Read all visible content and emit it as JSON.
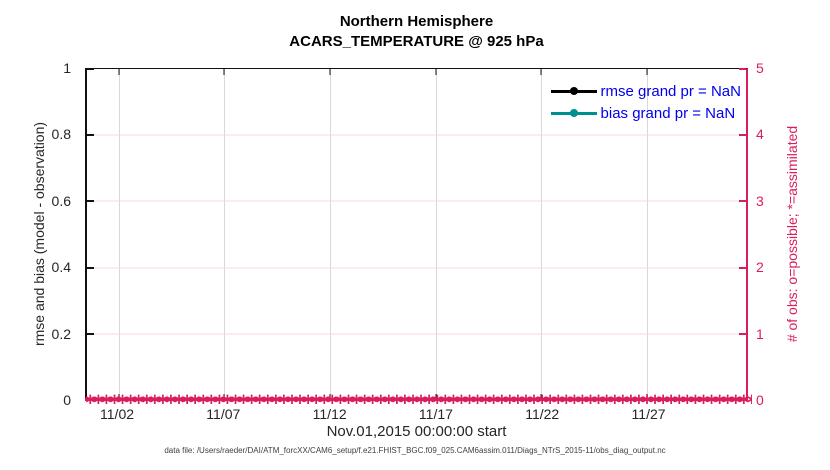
{
  "chart_data": {
    "type": "line",
    "title": "Northern Hemisphere",
    "subtitle": "ACARS_TEMPERATURE @ 925 hPa",
    "xlabel": "Nov.01,2015 00:00:00 start",
    "footer_note": "data file: /Users/raeder/DAI/ATM_forcXX/CAM6_setup/f.e21.FHIST_BGC.f09_025.CAM6assim.011/Diags_NTrS_2015-11/obs_diag_output.nc",
    "grid": {
      "vertical_color": "#d9d9d9",
      "horizontal_color": "#f8d7e3"
    },
    "x_axis": {
      "ticks": [
        {
          "label": "11/02",
          "pos_pct": 4.83
        },
        {
          "label": "11/07",
          "pos_pct": 20.86
        },
        {
          "label": "11/12",
          "pos_pct": 36.9
        },
        {
          "label": "11/17",
          "pos_pct": 52.93
        },
        {
          "label": "11/22",
          "pos_pct": 68.96
        },
        {
          "label": "11/27",
          "pos_pct": 85.0
        }
      ]
    },
    "left_axis": {
      "label": "rmse and bias (model - observation)",
      "lim": [
        0,
        1
      ],
      "color": "#111111",
      "ticks": [
        {
          "label": "0",
          "value": 0
        },
        {
          "label": "0.2",
          "value": 0.2
        },
        {
          "label": "0.4",
          "value": 0.4
        },
        {
          "label": "0.6",
          "value": 0.6
        },
        {
          "label": "0.8",
          "value": 0.8
        },
        {
          "label": "1",
          "value": 1
        }
      ]
    },
    "right_axis": {
      "label": "# of obs: o=possible; *=assimilated",
      "lim": [
        0,
        5
      ],
      "color": "#DA1D5E",
      "ticks": [
        {
          "label": "0",
          "value": 0
        },
        {
          "label": "1",
          "value": 1
        },
        {
          "label": "2",
          "value": 2
        },
        {
          "label": "3",
          "value": 3
        },
        {
          "label": "4",
          "value": 4
        },
        {
          "label": "5",
          "value": 5
        }
      ]
    },
    "legend": {
      "position": "top-right",
      "text_color": "#0000EE",
      "items": [
        {
          "label": "rmse grand pr = NaN",
          "color": "#000000",
          "marker": "filled-circle"
        },
        {
          "label": "bias grand pr = NaN",
          "color": "#008F8F",
          "marker": "filled-circle"
        }
      ]
    },
    "series": [
      {
        "name": "rmse",
        "values": [],
        "note": "all values NaN - no curve drawn"
      },
      {
        "name": "bias",
        "values": [],
        "note": "all values NaN - no curve drawn"
      }
    ],
    "obs_band": {
      "description": "observation counts (o=possible, *=assimilated) all zero across entire time axis",
      "possible": 0,
      "assimilated": 0,
      "glyph": "∗",
      "color": "#DA1D5E",
      "count": 220
    }
  }
}
